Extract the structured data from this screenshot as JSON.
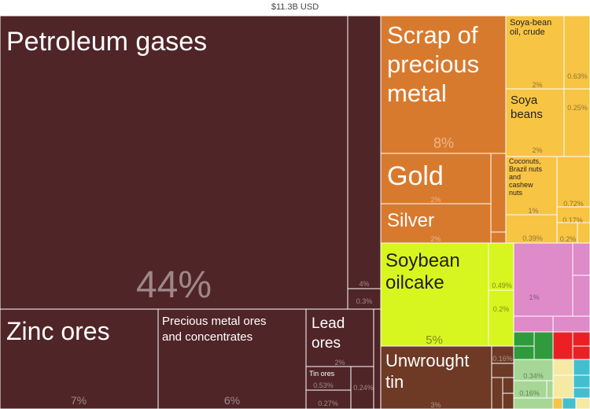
{
  "header": {
    "total_label": "$11.3B USD"
  },
  "colors": {
    "mineral_products": "#502527",
    "precious_metals": "#d87a2e",
    "vegetable_products": "#f7c443",
    "animal_vegetable_byproducts": "#d7f51e",
    "chemicals": "#df8ac9",
    "plastics": "#2f9b3c",
    "machines": "#ec2024",
    "metals": "#6e3a25",
    "foodstuffs": "#a6d796",
    "textiles": "#42bfcf",
    "paper": "#f5e9a4",
    "border": "#ffffff",
    "label_light": "#ffffff",
    "label_dark": "#231f20"
  },
  "chart_data": {
    "type": "treemap",
    "title": "$11.3B USD",
    "items": [
      {
        "key": "petroleum",
        "name": "Petroleum gases",
        "share": "44%",
        "value": 44,
        "category": "mineral_products"
      },
      {
        "key": "min-4",
        "name": "",
        "share": "4%",
        "value": 4,
        "category": "mineral_products"
      },
      {
        "key": "min-03",
        "name": "",
        "share": "0.3%",
        "value": 0.3,
        "category": "mineral_products"
      },
      {
        "key": "zinc",
        "name": "Zinc ores",
        "share": "7%",
        "value": 7,
        "category": "mineral_products"
      },
      {
        "key": "precious-ores",
        "name": "Precious metal ores and concentrates",
        "share": "6%",
        "value": 6,
        "category": "mineral_products"
      },
      {
        "key": "lead",
        "name": "Lead ores",
        "share": "2%",
        "value": 2,
        "category": "mineral_products"
      },
      {
        "key": "tin-ores",
        "name": "Tin ores",
        "share": "0.53%",
        "value": 0.53,
        "category": "mineral_products"
      },
      {
        "key": "min-027",
        "name": "",
        "share": "0.27%",
        "value": 0.27,
        "category": "mineral_products"
      },
      {
        "key": "min-024",
        "name": "",
        "share": "0.24%",
        "value": 0.24,
        "category": "mineral_products"
      },
      {
        "key": "scrap",
        "name": "Scrap of precious metal",
        "share": "8%",
        "value": 8,
        "category": "precious_metals"
      },
      {
        "key": "gold",
        "name": "Gold",
        "share": "2%",
        "value": 2,
        "category": "precious_metals"
      },
      {
        "key": "silver",
        "name": "Silver",
        "share": "2%",
        "value": 2,
        "category": "precious_metals"
      },
      {
        "key": "soy-oil",
        "name": "Soya-bean oil, crude",
        "share": "2%",
        "value": 2,
        "category": "vegetable_products"
      },
      {
        "key": "veg-063",
        "name": "",
        "share": "0.63%",
        "value": 0.63,
        "category": "vegetable_products"
      },
      {
        "key": "soy-beans",
        "name": "Soya beans",
        "share": "2%",
        "value": 2,
        "category": "vegetable_products"
      },
      {
        "key": "veg-025",
        "name": "",
        "share": "0.25%",
        "value": 0.25,
        "category": "vegetable_products"
      },
      {
        "key": "coconuts",
        "name": "Coconuts, Brazil nuts and cashew nuts",
        "share": "1%",
        "value": 1,
        "category": "vegetable_products"
      },
      {
        "key": "veg-072",
        "name": "",
        "share": "0.72%",
        "value": 0.72,
        "category": "vegetable_products"
      },
      {
        "key": "veg-017",
        "name": "",
        "share": "0.17%",
        "value": 0.17,
        "category": "vegetable_products"
      },
      {
        "key": "veg-039",
        "name": "",
        "share": "0.39%",
        "value": 0.39,
        "category": "vegetable_products"
      },
      {
        "key": "veg-02",
        "name": "",
        "share": "0.2%",
        "value": 0.2,
        "category": "vegetable_products"
      },
      {
        "key": "oilcake",
        "name": "Soybean oilcake",
        "share": "5%",
        "value": 5,
        "category": "animal_vegetable_byproducts"
      },
      {
        "key": "byp-049",
        "name": "",
        "share": "0.49%",
        "value": 0.49,
        "category": "animal_vegetable_byproducts"
      },
      {
        "key": "byp-02",
        "name": "",
        "share": "0.2%",
        "value": 0.2,
        "category": "animal_vegetable_byproducts"
      },
      {
        "key": "unwrought-tin",
        "name": "Unwrought tin",
        "share": "3%",
        "value": 3,
        "category": "metals"
      },
      {
        "key": "met-016",
        "name": "",
        "share": "0.16%",
        "value": 0.16,
        "category": "metals"
      },
      {
        "key": "chem-1",
        "name": "",
        "share": "1%",
        "value": 1,
        "category": "chemicals"
      },
      {
        "key": "food-034",
        "name": "",
        "share": "0.34%",
        "value": 0.34,
        "category": "foodstuffs"
      },
      {
        "key": "food-016",
        "name": "",
        "share": "0.16%",
        "value": 0.16,
        "category": "foodstuffs"
      }
    ]
  }
}
